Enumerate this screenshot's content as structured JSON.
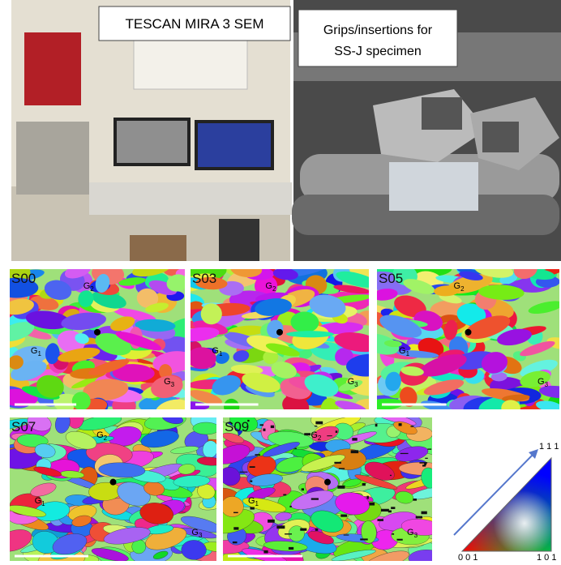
{
  "photos": [
    {
      "label": "TESCAN MIRA 3 SEM"
    },
    {
      "label_lines": [
        "Grips/insertions for",
        "SS-J specimen"
      ]
    }
  ],
  "maps": [
    {
      "label": "S00",
      "grains": [
        {
          "base": "G",
          "sub": "2"
        },
        {
          "base": "G",
          "sub": "1"
        },
        {
          "base": "G",
          "sub": "3"
        }
      ]
    },
    {
      "label": "S03",
      "grains": [
        {
          "base": "G",
          "sub": "2"
        },
        {
          "base": "G",
          "sub": "1"
        },
        {
          "base": "G",
          "sub": "3"
        }
      ]
    },
    {
      "label": "S05",
      "grains": [
        {
          "base": "G",
          "sub": "2"
        },
        {
          "base": "G",
          "sub": "1"
        },
        {
          "base": "G",
          "sub": "3"
        }
      ]
    },
    {
      "label": "S07",
      "grains": [
        {
          "base": "G",
          "sub": "2"
        },
        {
          "base": "G",
          "sub": "1"
        },
        {
          "base": "G",
          "sub": "3"
        }
      ]
    },
    {
      "label": "S09",
      "grains": [
        {
          "base": "G",
          "sub": "2"
        },
        {
          "base": "G",
          "sub": "1"
        },
        {
          "base": "G",
          "sub": "3"
        }
      ]
    }
  ],
  "ipf_key": {
    "corners": [
      "0 0 1",
      "1 0 1",
      "1 1 1"
    ]
  }
}
